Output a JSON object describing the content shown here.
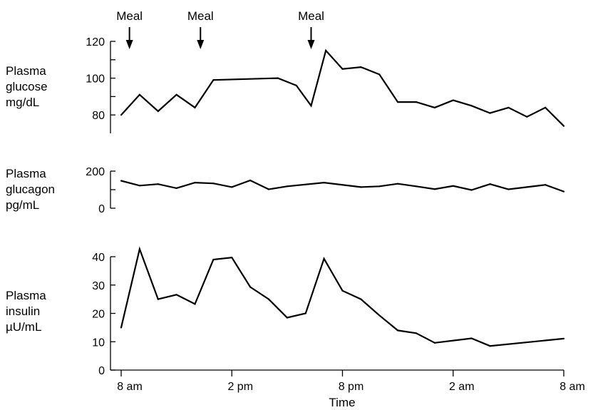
{
  "chart_data": {
    "type": "line",
    "x_axis": {
      "title": "Time",
      "unit": "hours from 8 am",
      "range": [
        0,
        24
      ],
      "ticks": [
        {
          "x": 0,
          "label": "8 am"
        },
        {
          "x": 6,
          "label": "2 pm"
        },
        {
          "x": 12,
          "label": "8 pm"
        },
        {
          "x": 18,
          "label": "2 am"
        },
        {
          "x": 24,
          "label": "8 am"
        }
      ]
    },
    "meals": [
      {
        "x": 0.45,
        "label": "Meal"
      },
      {
        "x": 4.3,
        "label": "Meal"
      },
      {
        "x": 10.3,
        "label": "Meal"
      }
    ],
    "panels": [
      {
        "label_lines": [
          "Plasma",
          "glucose",
          "mg/dL"
        ],
        "ylim": [
          70,
          120
        ],
        "ticks": [
          80,
          90,
          100,
          110,
          120
        ],
        "tick_labels": [
          {
            "value": 80,
            "label": "80"
          },
          {
            "value": 100,
            "label": "100"
          },
          {
            "value": 120,
            "label": "120"
          }
        ],
        "points": [
          [
            0,
            80
          ],
          [
            1,
            91
          ],
          [
            2,
            82
          ],
          [
            3,
            91
          ],
          [
            4,
            84
          ],
          [
            5,
            99
          ],
          [
            8.5,
            100
          ],
          [
            9.5,
            96
          ],
          [
            10.3,
            85
          ],
          [
            11.1,
            115
          ],
          [
            12,
            105
          ],
          [
            13,
            106
          ],
          [
            14,
            102
          ],
          [
            15,
            87
          ],
          [
            16,
            87
          ],
          [
            17,
            84
          ],
          [
            18,
            88
          ],
          [
            19,
            85
          ],
          [
            20,
            81
          ],
          [
            21,
            84
          ],
          [
            22,
            79
          ],
          [
            23,
            84
          ],
          [
            24,
            74
          ]
        ]
      },
      {
        "label_lines": [
          "Plasma",
          "glucagon",
          "pg/mL"
        ],
        "ylim": [
          0,
          200
        ],
        "ticks": [
          0,
          100,
          200
        ],
        "tick_labels": [
          {
            "value": 0,
            "label": "0"
          },
          {
            "value": 200,
            "label": "200"
          }
        ],
        "points": [
          [
            0,
            148
          ],
          [
            1,
            122
          ],
          [
            2,
            130
          ],
          [
            3,
            108
          ],
          [
            4,
            138
          ],
          [
            5,
            134
          ],
          [
            6,
            114
          ],
          [
            7,
            150
          ],
          [
            8,
            102
          ],
          [
            9,
            118
          ],
          [
            11,
            138
          ],
          [
            13,
            114
          ],
          [
            14,
            118
          ],
          [
            15,
            132
          ],
          [
            16,
            118
          ],
          [
            17,
            103
          ],
          [
            18,
            120
          ],
          [
            19,
            98
          ],
          [
            20,
            130
          ],
          [
            21,
            102
          ],
          [
            22,
            114
          ],
          [
            23,
            126
          ],
          [
            24,
            90
          ]
        ]
      },
      {
        "label_lines": [
          "Plasma",
          "insulin",
          "µU/mL"
        ],
        "ylim": [
          0,
          40
        ],
        "ticks": [
          0,
          10,
          20,
          30,
          40
        ],
        "tick_labels": [
          {
            "value": 0,
            "label": "0"
          },
          {
            "value": 10,
            "label": "10"
          },
          {
            "value": 20,
            "label": "20"
          },
          {
            "value": 30,
            "label": "30"
          },
          {
            "value": 40,
            "label": "40"
          }
        ],
        "points": [
          [
            0,
            15
          ],
          [
            1,
            42.7
          ],
          [
            2,
            25
          ],
          [
            3,
            26.6
          ],
          [
            4,
            23.3
          ],
          [
            5,
            39
          ],
          [
            6,
            39.7
          ],
          [
            7,
            29.3
          ],
          [
            8,
            25
          ],
          [
            9,
            18.5
          ],
          [
            10,
            20
          ],
          [
            11,
            39.3
          ],
          [
            12,
            28
          ],
          [
            13,
            25
          ],
          [
            14,
            19.3
          ],
          [
            15,
            14
          ],
          [
            16,
            13
          ],
          [
            17,
            9.6
          ],
          [
            19,
            11.2
          ],
          [
            20,
            8.5
          ],
          [
            24,
            11.1
          ]
        ]
      }
    ]
  }
}
